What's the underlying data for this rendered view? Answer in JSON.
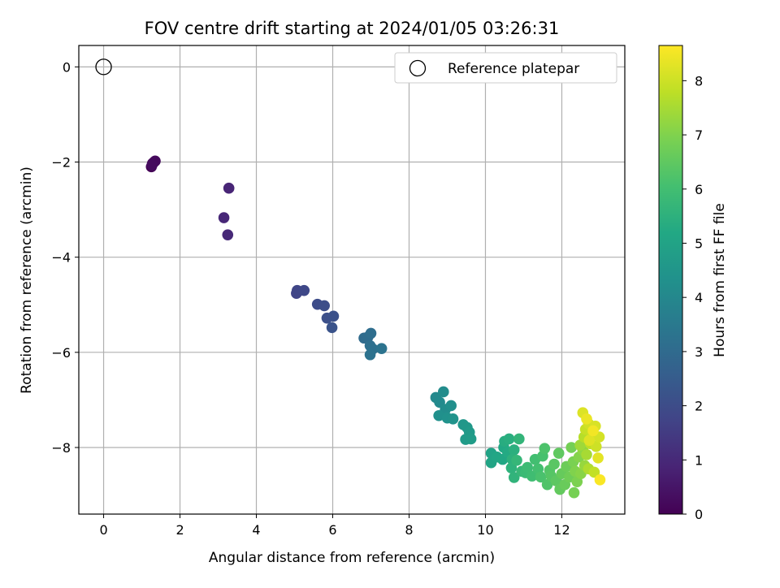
{
  "chart_data": {
    "type": "scatter",
    "title": "FOV centre drift starting at 2024/01/05 03:26:31",
    "xlabel": "Angular distance from reference (arcmin)",
    "ylabel": "Rotation from reference (arcmin)",
    "xlim": [
      -0.65,
      13.65
    ],
    "ylim": [
      -9.4,
      0.45
    ],
    "xticks": [
      0,
      2,
      4,
      6,
      8,
      10,
      12
    ],
    "yticks": [
      0,
      -2,
      -4,
      -6,
      -8
    ],
    "grid": true,
    "legend": {
      "position": "top-right",
      "entries": [
        "Reference platepar"
      ]
    },
    "reference_point": {
      "x": 0,
      "y": 0
    },
    "colorbar": {
      "label": "Hours from first FF file",
      "range": [
        0,
        8.65
      ],
      "ticks": [
        0,
        1,
        2,
        3,
        4,
        5,
        6,
        7,
        8
      ],
      "colormap": "viridis"
    },
    "series": [
      {
        "points": [
          {
            "x": 1.25,
            "y": -2.1,
            "h": 0.05
          },
          {
            "x": 1.28,
            "y": -2.03,
            "h": 0.1
          },
          {
            "x": 1.32,
            "y": -2.0,
            "h": 0.15
          },
          {
            "x": 1.35,
            "y": -1.98,
            "h": 0.2
          },
          {
            "x": 1.27,
            "y": -2.06,
            "h": 0.25
          },
          {
            "x": 3.28,
            "y": -2.55,
            "h": 0.9
          },
          {
            "x": 3.15,
            "y": -3.17,
            "h": 0.95
          },
          {
            "x": 3.25,
            "y": -3.53,
            "h": 1.0
          },
          {
            "x": 5.05,
            "y": -4.76,
            "h": 1.75
          },
          {
            "x": 5.07,
            "y": -4.7,
            "h": 1.8
          },
          {
            "x": 5.25,
            "y": -4.7,
            "h": 1.85
          },
          {
            "x": 5.6,
            "y": -4.99,
            "h": 2.0
          },
          {
            "x": 5.78,
            "y": -5.02,
            "h": 2.05
          },
          {
            "x": 5.85,
            "y": -5.28,
            "h": 2.1
          },
          {
            "x": 6.02,
            "y": -5.24,
            "h": 2.15
          },
          {
            "x": 5.98,
            "y": -5.48,
            "h": 2.2
          },
          {
            "x": 6.82,
            "y": -5.7,
            "h": 3.0
          },
          {
            "x": 6.92,
            "y": -5.68,
            "h": 3.05
          },
          {
            "x": 7.0,
            "y": -5.6,
            "h": 3.1
          },
          {
            "x": 6.98,
            "y": -5.86,
            "h": 3.15
          },
          {
            "x": 7.05,
            "y": -5.93,
            "h": 3.2
          },
          {
            "x": 6.98,
            "y": -6.05,
            "h": 3.25
          },
          {
            "x": 7.28,
            "y": -5.92,
            "h": 3.3
          },
          {
            "x": 8.7,
            "y": -6.95,
            "h": 4.05
          },
          {
            "x": 8.8,
            "y": -7.05,
            "h": 4.1
          },
          {
            "x": 8.9,
            "y": -6.83,
            "h": 4.15
          },
          {
            "x": 8.95,
            "y": -7.2,
            "h": 4.2
          },
          {
            "x": 9.1,
            "y": -7.12,
            "h": 4.25
          },
          {
            "x": 8.78,
            "y": -7.33,
            "h": 4.3
          },
          {
            "x": 9.0,
            "y": -7.38,
            "h": 4.35
          },
          {
            "x": 9.15,
            "y": -7.4,
            "h": 4.4
          },
          {
            "x": 9.42,
            "y": -7.52,
            "h": 4.55
          },
          {
            "x": 9.52,
            "y": -7.58,
            "h": 4.6
          },
          {
            "x": 9.58,
            "y": -7.68,
            "h": 4.65
          },
          {
            "x": 9.48,
            "y": -7.83,
            "h": 4.7
          },
          {
            "x": 9.62,
            "y": -7.82,
            "h": 4.75
          },
          {
            "x": 10.15,
            "y": -8.12,
            "h": 5.0
          },
          {
            "x": 10.15,
            "y": -8.32,
            "h": 5.05
          },
          {
            "x": 10.3,
            "y": -8.2,
            "h": 5.1
          },
          {
            "x": 10.45,
            "y": -8.25,
            "h": 5.15
          },
          {
            "x": 10.48,
            "y": -8.0,
            "h": 5.2
          },
          {
            "x": 10.58,
            "y": -8.1,
            "h": 5.25
          },
          {
            "x": 10.5,
            "y": -7.87,
            "h": 5.35
          },
          {
            "x": 10.62,
            "y": -7.82,
            "h": 5.4
          },
          {
            "x": 10.75,
            "y": -8.05,
            "h": 5.45
          },
          {
            "x": 10.7,
            "y": -8.25,
            "h": 5.5
          },
          {
            "x": 10.68,
            "y": -8.43,
            "h": 5.55
          },
          {
            "x": 10.75,
            "y": -8.63,
            "h": 5.6
          },
          {
            "x": 10.88,
            "y": -7.82,
            "h": 5.65
          },
          {
            "x": 10.82,
            "y": -8.27,
            "h": 5.7
          },
          {
            "x": 10.95,
            "y": -8.5,
            "h": 5.75
          },
          {
            "x": 11.05,
            "y": -8.53,
            "h": 5.85
          },
          {
            "x": 11.1,
            "y": -8.42,
            "h": 5.9
          },
          {
            "x": 11.22,
            "y": -8.6,
            "h": 5.95
          },
          {
            "x": 11.3,
            "y": -8.25,
            "h": 6.0
          },
          {
            "x": 11.38,
            "y": -8.45,
            "h": 6.05
          },
          {
            "x": 11.5,
            "y": -8.18,
            "h": 6.1
          },
          {
            "x": 11.45,
            "y": -8.62,
            "h": 6.15
          },
          {
            "x": 11.55,
            "y": -8.02,
            "h": 6.2
          },
          {
            "x": 11.62,
            "y": -8.78,
            "h": 6.25
          },
          {
            "x": 11.68,
            "y": -8.48,
            "h": 6.3
          },
          {
            "x": 11.72,
            "y": -8.6,
            "h": 6.35
          },
          {
            "x": 11.8,
            "y": -8.35,
            "h": 6.4
          },
          {
            "x": 11.85,
            "y": -8.7,
            "h": 6.45
          },
          {
            "x": 11.92,
            "y": -8.12,
            "h": 6.5
          },
          {
            "x": 11.95,
            "y": -8.88,
            "h": 6.55
          },
          {
            "x": 12.0,
            "y": -8.55,
            "h": 6.6
          },
          {
            "x": 12.08,
            "y": -8.78,
            "h": 6.65
          },
          {
            "x": 12.12,
            "y": -8.4,
            "h": 6.7
          },
          {
            "x": 12.2,
            "y": -8.62,
            "h": 6.75
          },
          {
            "x": 12.25,
            "y": -8.0,
            "h": 6.8
          },
          {
            "x": 12.32,
            "y": -8.95,
            "h": 6.85
          },
          {
            "x": 12.3,
            "y": -8.3,
            "h": 6.9
          },
          {
            "x": 12.4,
            "y": -8.72,
            "h": 6.95
          },
          {
            "x": 12.35,
            "y": -8.5,
            "h": 7.0
          },
          {
            "x": 12.45,
            "y": -8.2,
            "h": 7.05
          },
          {
            "x": 12.5,
            "y": -8.55,
            "h": 7.1
          },
          {
            "x": 12.55,
            "y": -8.05,
            "h": 7.2
          },
          {
            "x": 12.6,
            "y": -8.38,
            "h": 7.3
          },
          {
            "x": 12.48,
            "y": -7.95,
            "h": 7.4
          },
          {
            "x": 12.65,
            "y": -8.15,
            "h": 7.5
          },
          {
            "x": 12.7,
            "y": -8.45,
            "h": 7.6
          },
          {
            "x": 12.58,
            "y": -7.78,
            "h": 7.7
          },
          {
            "x": 12.75,
            "y": -7.92,
            "h": 7.8
          },
          {
            "x": 12.85,
            "y": -8.52,
            "h": 7.85
          },
          {
            "x": 12.62,
            "y": -7.62,
            "h": 7.9
          },
          {
            "x": 12.8,
            "y": -7.72,
            "h": 7.95
          },
          {
            "x": 12.9,
            "y": -7.98,
            "h": 8.0
          },
          {
            "x": 12.7,
            "y": -7.5,
            "h": 8.05
          },
          {
            "x": 12.98,
            "y": -7.78,
            "h": 8.1
          },
          {
            "x": 12.88,
            "y": -7.55,
            "h": 8.15
          },
          {
            "x": 12.55,
            "y": -7.27,
            "h": 8.2
          },
          {
            "x": 12.72,
            "y": -7.85,
            "h": 8.25
          },
          {
            "x": 12.95,
            "y": -8.22,
            "h": 8.3
          },
          {
            "x": 12.65,
            "y": -7.4,
            "h": 8.4
          },
          {
            "x": 12.82,
            "y": -7.65,
            "h": 8.5
          },
          {
            "x": 13.0,
            "y": -8.68,
            "h": 8.6
          }
        ]
      }
    ]
  }
}
